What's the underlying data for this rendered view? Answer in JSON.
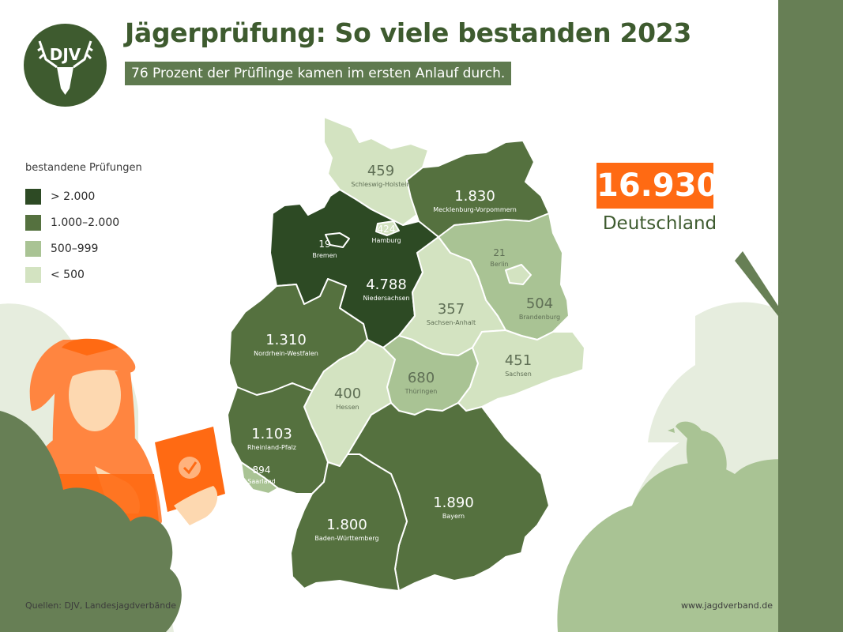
{
  "title": "Jägerprüfung: So viele bestanden 2023",
  "subtitle": "76 Prozent der Prüflinge kamen im ersten Anlauf durch.",
  "logo_text": "DJV",
  "legend": {
    "title": "bestandene Prüfungen",
    "items": [
      {
        "label": "> 2.000",
        "color": "#2d4a24"
      },
      {
        "label": "1.000–2.000",
        "color": "#55713f"
      },
      {
        "label": "500–999",
        "color": "#a9c394"
      },
      {
        "label": "< 500",
        "color": "#d3e3c1"
      }
    ]
  },
  "total": {
    "value": "16.930",
    "label": "Deutschland"
  },
  "footer": {
    "source": "Quellen: DJV, Landesjagdverbände",
    "url": "www.jagdverband.de"
  },
  "colors": {
    "title": "#3e5b2f",
    "accent": "#ff6a13",
    "dark": "#2d4a24",
    "mid": "#55713f",
    "light": "#a9c394",
    "lightest": "#d3e3c1",
    "bush": "#677f55",
    "bush_light": "#e6edde"
  },
  "states": [
    {
      "name": "Schleswig-Holstein",
      "value": "459"
    },
    {
      "name": "Mecklenburg-Vorpommern",
      "value": "1.830"
    },
    {
      "name": "Hamburg",
      "value": "424"
    },
    {
      "name": "Bremen",
      "value": "19"
    },
    {
      "name": "Niedersachsen",
      "value": "4.788"
    },
    {
      "name": "Berlin",
      "value": "21"
    },
    {
      "name": "Brandenburg",
      "value": "504"
    },
    {
      "name": "Sachsen-Anhalt",
      "value": "357"
    },
    {
      "name": "Nordrhein-Westfalen",
      "value": "1.310"
    },
    {
      "name": "Sachsen",
      "value": "451"
    },
    {
      "name": "Thüringen",
      "value": "680"
    },
    {
      "name": "Hessen",
      "value": "400"
    },
    {
      "name": "Rheinland-Pfalz",
      "value": "1.103"
    },
    {
      "name": "Saarland",
      "value": "894"
    },
    {
      "name": "Bayern",
      "value": "1.890"
    },
    {
      "name": "Baden-Württemberg",
      "value": "1.800"
    }
  ]
}
